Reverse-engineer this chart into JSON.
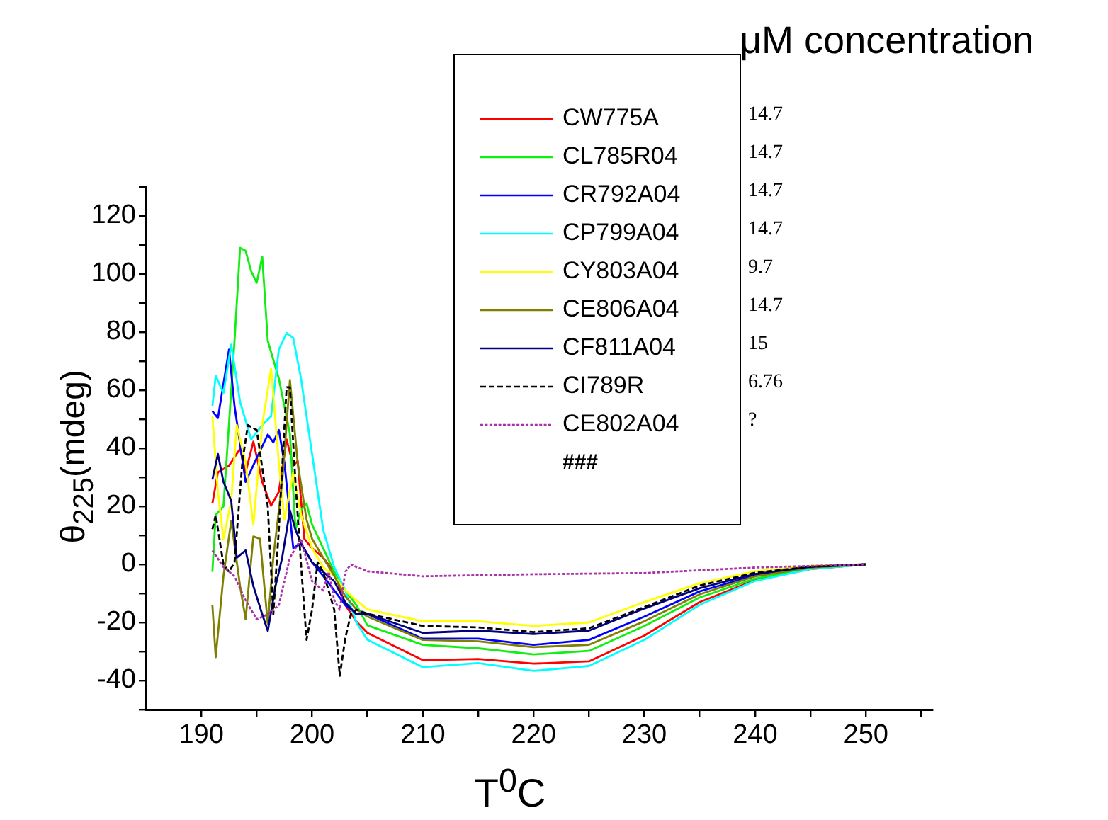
{
  "chart_data": {
    "type": "line",
    "xlabel": "T$^{0}$C",
    "ylabel": "θ$_{225}$(mdeg)",
    "xlim": [
      185,
      256
    ],
    "ylim": [
      -50,
      130
    ],
    "xticks": [
      190,
      {
        "value": 195,
        "label": null
      },
      200,
      {
        "value": 205,
        "label": null
      },
      210,
      {
        "value": 215,
        "label": null
      },
      220,
      {
        "value": 225,
        "label": null
      },
      230,
      {
        "value": 235,
        "label": null
      },
      240,
      {
        "value": 245,
        "label": null
      },
      250,
      {
        "value": 255,
        "label": null
      }
    ],
    "yticks": [
      {
        "value": -50,
        "label": null
      },
      -40,
      {
        "value": -30,
        "label": null
      },
      -20,
      {
        "value": -10,
        "label": null
      },
      0,
      {
        "value": 10,
        "label": null
      },
      20,
      {
        "value": 30,
        "label": null
      },
      40,
      {
        "value": 50,
        "label": null
      },
      60,
      {
        "value": 70,
        "label": null
      },
      80,
      {
        "value": 90,
        "label": null
      },
      100,
      {
        "value": 110,
        "label": null
      },
      120,
      {
        "value": 130,
        "label": null
      }
    ],
    "grid": false,
    "legend": "top right",
    "marker": "none",
    "annotations": [
      "μM concentration",
      "14.7",
      "14.7",
      "14.7",
      "14.7",
      "9.7",
      "14.7",
      "15",
      "6.76",
      "?",
      "###"
    ],
    "series": [
      {
        "name": "CW775A",
        "color": "#ff0000",
        "line_style": "solid",
        "x": [
          191,
          191.5,
          192.5,
          193.5,
          194,
          194.7,
          195.5,
          196.3,
          197,
          197.7,
          198.3,
          198.7,
          199.3,
          200,
          201,
          202,
          203,
          204,
          205,
          210,
          215,
          220,
          225,
          230,
          235,
          240,
          245,
          250
        ],
        "values": [
          21,
          31.7,
          34,
          39.8,
          31.7,
          42.3,
          28.4,
          20.2,
          25,
          43,
          34,
          35.6,
          8.8,
          5.6,
          2.3,
          -2.6,
          -14,
          -19.7,
          -23.6,
          -33,
          -32.6,
          -34.2,
          -33.4,
          -24.5,
          -13,
          -5.4,
          -1.6,
          0
        ]
      },
      {
        "name": "CL785R04",
        "color": "#11ee11",
        "line_style": "solid",
        "x": [
          191,
          191.3,
          192,
          193,
          193.5,
          194,
          194.5,
          195,
          195.5,
          196,
          197,
          198,
          198.5,
          199,
          199.5,
          200,
          201,
          202,
          203,
          204,
          205,
          210,
          215,
          220,
          225,
          230,
          235,
          240,
          245,
          250
        ],
        "values": [
          -2.6,
          17,
          20,
          77,
          109,
          108,
          101,
          97,
          106,
          77,
          64,
          45,
          12,
          18.6,
          21,
          13.7,
          5.6,
          -2.6,
          -9,
          -14,
          -21,
          -27.7,
          -28.9,
          -31,
          -29.8,
          -21.2,
          -11.4,
          -4.9,
          -1.3,
          0
        ]
      },
      {
        "name": "CR792A04",
        "color": "#0000ff",
        "line_style": "solid",
        "x": [
          191,
          191.5,
          192.5,
          193,
          194,
          195,
          196,
          196.5,
          197,
          197.5,
          198.3,
          199,
          200,
          201,
          202,
          203,
          204,
          205,
          210,
          215,
          220,
          225,
          230,
          235,
          240,
          245,
          250
        ],
        "values": [
          52.8,
          50.4,
          74,
          54.5,
          28.4,
          36.6,
          44.7,
          42,
          46.3,
          35,
          5.6,
          7.2,
          0.7,
          -4,
          -9,
          -14,
          -17,
          -17.1,
          -25.6,
          -25.6,
          -27.7,
          -26,
          -18,
          -9.3,
          -3.8,
          -0.8,
          0
        ]
      },
      {
        "name": "CP799A04",
        "color": "#00ffff",
        "line_style": "solid",
        "x": [
          191,
          191.3,
          192,
          192.7,
          193.5,
          194.5,
          195.5,
          196.3,
          197,
          197.7,
          198.3,
          199,
          200,
          201,
          202,
          203,
          204,
          205,
          210,
          215,
          220,
          225,
          230,
          235,
          240,
          245,
          250
        ],
        "values": [
          54.5,
          65,
          59,
          75.7,
          56,
          43,
          48,
          51,
          74,
          79.7,
          78,
          64,
          38,
          12,
          -1,
          -9,
          -20,
          -26,
          -35.4,
          -34,
          -36.7,
          -35,
          -26,
          -13.9,
          -5.7,
          -1.6,
          0
        ]
      },
      {
        "name": "CY803A04",
        "color": "#ffff00",
        "line_style": "solid",
        "x": [
          191,
          191.5,
          192,
          192.7,
          193.2,
          194,
          194.7,
          195.5,
          196.3,
          197,
          197.5,
          198.3,
          199,
          200,
          201,
          202,
          203,
          204,
          205,
          210,
          215,
          220,
          225,
          230,
          235,
          240,
          245,
          250
        ],
        "values": [
          51,
          25,
          8.8,
          21.9,
          48,
          35,
          13.7,
          48,
          67.5,
          35,
          15.4,
          31.7,
          17,
          5.6,
          -1,
          -4,
          -9,
          -12.4,
          -15.5,
          -19.6,
          -19.6,
          -21.2,
          -20,
          -13,
          -6.5,
          -2.4,
          -0.5,
          0
        ]
      },
      {
        "name": "CE806A04",
        "color": "#808000",
        "line_style": "solid",
        "x": [
          191,
          191.3,
          192,
          192.7,
          193.5,
          194,
          194.7,
          195.3,
          196,
          196.5,
          197.3,
          198,
          198.7,
          199.5,
          200,
          201,
          202,
          203,
          204,
          205,
          210,
          215,
          220,
          225,
          230,
          235,
          240,
          245,
          250
        ],
        "values": [
          -14,
          -32,
          -4,
          15,
          -7.5,
          -18.9,
          9.6,
          8.8,
          -20.5,
          2.3,
          28.4,
          63.5,
          35,
          15.4,
          8.8,
          2.3,
          -4,
          -11,
          -15.5,
          -18,
          -26,
          -26.5,
          -28.5,
          -27.7,
          -19.6,
          -10.3,
          -4.1,
          -1.1,
          0
        ]
      },
      {
        "name": "CF811A04",
        "color": "#000080",
        "line_style": "solid",
        "x": [
          191,
          191.5,
          192,
          192.7,
          193.2,
          194,
          194.7,
          195.5,
          196,
          196.7,
          197.3,
          198,
          198.5,
          199,
          200,
          201,
          202,
          203,
          204,
          205,
          210,
          215,
          220,
          225,
          230,
          235,
          240,
          245,
          250
        ],
        "values": [
          29.2,
          38,
          28.4,
          21.9,
          2.3,
          4.8,
          -7.5,
          -17.2,
          -22.9,
          -7.5,
          2.3,
          18.6,
          12,
          7.2,
          0.7,
          -2.6,
          -5.8,
          -13.1,
          -17.2,
          -17,
          -23.6,
          -22.8,
          -24,
          -22.8,
          -15.2,
          -8.2,
          -3.3,
          -0.8,
          0
        ]
      },
      {
        "name": "CI789R",
        "color": "#000000",
        "line_style": "dashed",
        "x": [
          191,
          191.3,
          192,
          192.5,
          193,
          193.7,
          194.2,
          195,
          195.5,
          196,
          196.5,
          197,
          197.7,
          198,
          198.5,
          199,
          199.5,
          200,
          200.5,
          201,
          202,
          202.5,
          203,
          203.5,
          204,
          205,
          210,
          215,
          220,
          225,
          230,
          235,
          240,
          245,
          250
        ],
        "values": [
          12.1,
          17,
          0,
          -2.6,
          0.7,
          35,
          48,
          46.3,
          33.3,
          20,
          -17.2,
          12.1,
          61,
          61,
          28.4,
          0,
          -26,
          -15.6,
          0.7,
          -2.6,
          -15.6,
          -38.4,
          -25.4,
          -17.2,
          -15.6,
          -17,
          -21.2,
          -21.7,
          -23.3,
          -22,
          -14.7,
          -7.3,
          -2.9,
          -0.8,
          0
        ]
      },
      {
        "name": "CE802A04",
        "color": "#aa33aa",
        "line_style": "dotted",
        "x": [
          191,
          192,
          193,
          194,
          195,
          196,
          197,
          198,
          199,
          200,
          201,
          201.5,
          202,
          202.5,
          203,
          203.5,
          204,
          205,
          210,
          220,
          230,
          240,
          250
        ],
        "values": [
          4.8,
          -0.9,
          -4.1,
          -12.4,
          -18.9,
          -17.2,
          -14,
          2.3,
          8.8,
          -5.8,
          -9,
          -2.6,
          -12.4,
          -15.6,
          -2.6,
          0,
          -0.9,
          -2.4,
          -4.1,
          -3.4,
          -3,
          -1.1,
          0
        ]
      }
    ]
  }
}
